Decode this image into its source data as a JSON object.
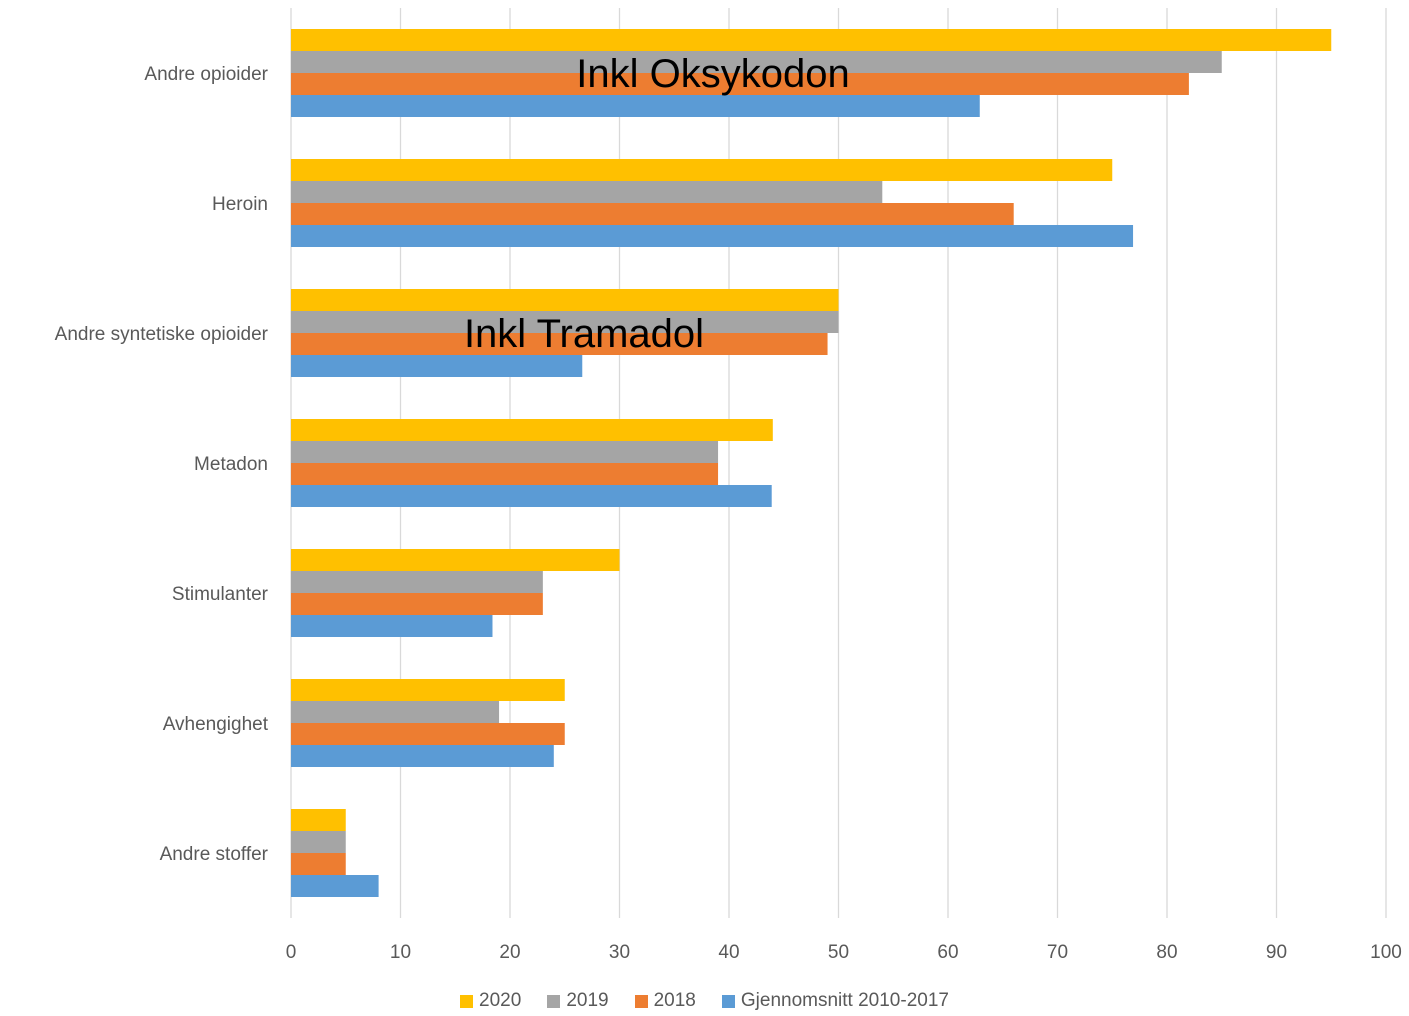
{
  "chart_data": {
    "type": "bar",
    "orientation": "horizontal",
    "categories": [
      "Andre stoffer",
      "Avhengighet",
      "Stimulanter",
      "Metadon",
      "Andre syntetiske opioider",
      "Heroin",
      "Andre opioider"
    ],
    "series": [
      {
        "name": "2020",
        "color": "#FFC000",
        "values": [
          5,
          25,
          30,
          44,
          50,
          75,
          95
        ]
      },
      {
        "name": "2019",
        "color": "#A5A5A5",
        "values": [
          5,
          19,
          23,
          39,
          50,
          54,
          85
        ]
      },
      {
        "name": "2018",
        "color": "#ED7D31",
        "values": [
          5,
          25,
          23,
          39,
          49,
          66,
          82
        ]
      },
      {
        "name": "Gjennomsnitt 2010-2017",
        "color": "#5B9BD5",
        "values": [
          8,
          24,
          18.4,
          43.9,
          26.6,
          76.9,
          62.9
        ]
      }
    ],
    "xlim": [
      0,
      100
    ],
    "xticks": [
      0,
      10,
      20,
      30,
      40,
      50,
      60,
      70,
      80,
      90,
      100
    ],
    "grid": "vertical",
    "legend_position": "bottom",
    "annotations": [
      {
        "text": "Inkl Tramadol",
        "category": "Andre syntetiske opioider"
      },
      {
        "text": "Inkl Oksykodon",
        "category": "Andre opioider"
      }
    ]
  }
}
